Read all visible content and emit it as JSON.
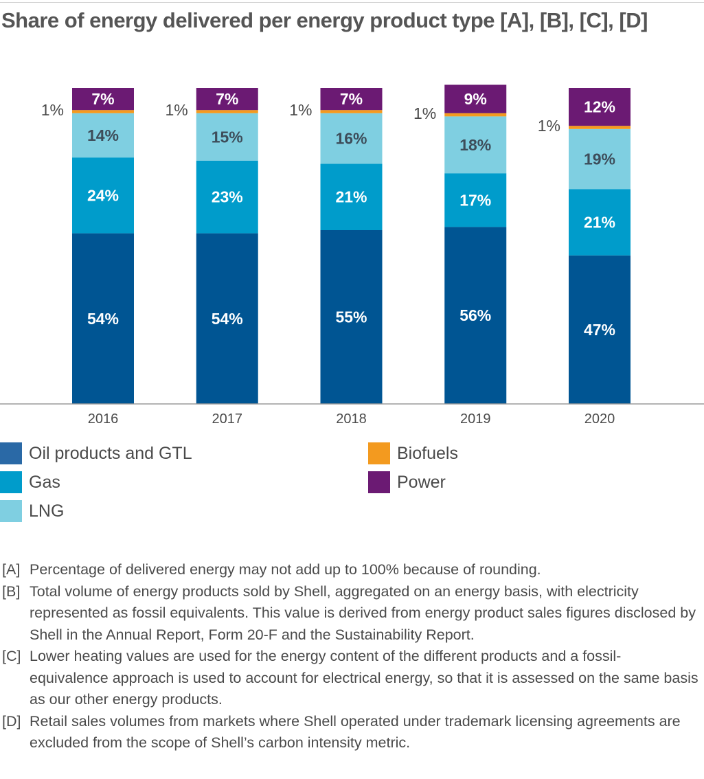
{
  "title": "Share of energy delivered per energy product type [A], [B], [C], [D]",
  "chart_data": {
    "type": "bar",
    "stacked": true,
    "title": "Share of energy delivered per energy product type [A], [B], [C], [D]",
    "categories": [
      "2016",
      "2017",
      "2018",
      "2019",
      "2020"
    ],
    "xlabel": "",
    "ylabel": "",
    "ylim": [
      0,
      100
    ],
    "grid": false,
    "series": [
      {
        "name": "Oil products and GTL",
        "color": "#005593",
        "values": [
          54,
          54,
          55,
          56,
          47
        ],
        "labels": [
          "54%",
          "54%",
          "55%",
          "56%",
          "47%"
        ]
      },
      {
        "name": "Gas",
        "color": "#009ccb",
        "values": [
          24,
          23,
          21,
          17,
          21
        ],
        "labels": [
          "24%",
          "23%",
          "21%",
          "17%",
          "21%"
        ]
      },
      {
        "name": "LNG",
        "color": "#7fcfe1",
        "values": [
          14,
          15,
          16,
          18,
          19
        ],
        "labels": [
          "14%",
          "15%",
          "16%",
          "18%",
          "19%"
        ]
      },
      {
        "name": "Biofuels",
        "color": "#f39a1f",
        "values": [
          1,
          1,
          1,
          1,
          1
        ],
        "labels": [
          "1%",
          "1%",
          "1%",
          "1%",
          "1%"
        ]
      },
      {
        "name": "Power",
        "color": "#6b1a73",
        "values": [
          7,
          7,
          7,
          9,
          12
        ],
        "labels": [
          "7%",
          "7%",
          "7%",
          "9%",
          "12%"
        ]
      }
    ]
  },
  "legend": {
    "items": [
      {
        "label": "Oil products and GTL",
        "color": "#2a69a6"
      },
      {
        "label": "Gas",
        "color": "#009ccb"
      },
      {
        "label": "LNG",
        "color": "#7fcfe1"
      },
      {
        "label": "Biofuels",
        "color": "#f39a1f"
      },
      {
        "label": "Power",
        "color": "#6b1a73"
      }
    ]
  },
  "footnotes": [
    {
      "tag": "[A]",
      "text": "Percentage of delivered energy may not add up to 100% because of rounding."
    },
    {
      "tag": "[B]",
      "text": "Total volume of energy products sold by Shell, aggregated on an energy basis, with electricity represented as fossil equivalents. This value is derived from energy product sales figures disclosed by Shell in the Annual Report, Form 20-F and the Sustainability Report."
    },
    {
      "tag": "[C]",
      "text": "Lower heating values are used for the energy content of the different products and a fossil-equivalence approach is used to account for electrical energy, so that it is assessed on the same basis as our other energy products."
    },
    {
      "tag": "[D]",
      "text": "Retail sales volumes from markets where Shell operated under trademark licensing agreements are excluded from the scope of Shell’s carbon intensity metric."
    }
  ]
}
